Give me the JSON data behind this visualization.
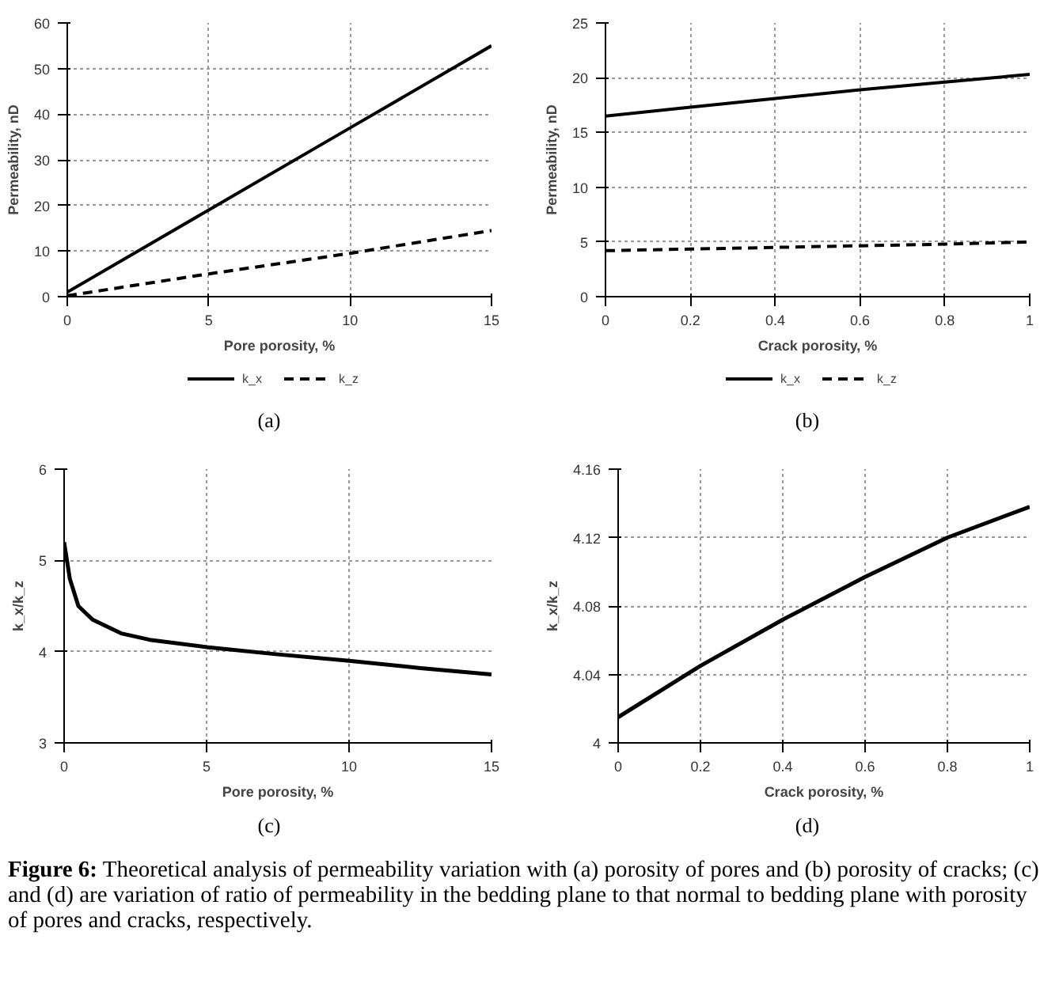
{
  "chart_data": [
    {
      "type": "line",
      "xlabel": "Pore porosity, %",
      "ylabel": "Permeability, nD",
      "x": [
        0,
        5,
        10,
        15
      ],
      "xlim": [
        0,
        15
      ],
      "xticks": [
        0,
        5,
        10,
        15
      ],
      "ylim": [
        0,
        60
      ],
      "yticks": [
        0,
        10,
        20,
        30,
        40,
        50,
        60
      ],
      "grid": true,
      "legend": "bottom",
      "annotations": [
        "(a)"
      ],
      "series": [
        {
          "name": "k_x",
          "color": "#000000",
          "line_style": "solid",
          "values": [
            1,
            19,
            37,
            55
          ]
        },
        {
          "name": "k_z",
          "color": "#000000",
          "line_style": "dashed",
          "values": [
            0.2,
            5,
            9.5,
            14.5
          ]
        }
      ]
    },
    {
      "type": "line",
      "xlabel": "Crack porosity, %",
      "ylabel": "Permeability, nD",
      "x": [
        0,
        0.2,
        0.4,
        0.6,
        0.8,
        1
      ],
      "xlim": [
        0,
        1
      ],
      "xticks": [
        0,
        0.2,
        0.4,
        0.6,
        0.8,
        1
      ],
      "ylim": [
        0,
        25
      ],
      "yticks": [
        0,
        5,
        10,
        15,
        20,
        25
      ],
      "grid": true,
      "legend": "bottom",
      "annotations": [
        "(b)"
      ],
      "series": [
        {
          "name": "k_x",
          "color": "#000000",
          "line_style": "solid",
          "values": [
            16.5,
            17.3,
            18.1,
            18.9,
            19.6,
            20.3
          ]
        },
        {
          "name": "k_z",
          "color": "#000000",
          "line_style": "dashed",
          "values": [
            4.2,
            4.35,
            4.5,
            4.65,
            4.8,
            5.0
          ]
        }
      ]
    },
    {
      "type": "line",
      "xlabel": "Pore porosity, %",
      "ylabel": "k_x/k_z",
      "x": [
        0,
        0.2,
        0.5,
        1,
        2,
        3,
        5,
        7.5,
        10,
        12.5,
        15
      ],
      "xlim": [
        0,
        15
      ],
      "xticks": [
        0,
        5,
        10,
        15
      ],
      "ylim": [
        3,
        6
      ],
      "yticks": [
        3,
        4,
        5,
        6
      ],
      "grid": true,
      "annotations": [
        "(c)"
      ],
      "series": [
        {
          "color": "#000000",
          "values": [
            5.2,
            4.8,
            4.5,
            4.35,
            4.2,
            4.13,
            4.05,
            3.97,
            3.9,
            3.82,
            3.75
          ]
        }
      ]
    },
    {
      "type": "line",
      "xlabel": "Crack porosity, %",
      "ylabel": "k_x/k_z",
      "x": [
        0,
        0.2,
        0.4,
        0.6,
        0.8,
        1
      ],
      "xlim": [
        0,
        1
      ],
      "xticks": [
        0,
        0.2,
        0.4,
        0.6,
        0.8,
        1
      ],
      "ylim": [
        4,
        4.16
      ],
      "yticks": [
        4,
        4.04,
        4.08,
        4.12,
        4.16
      ],
      "grid": true,
      "annotations": [
        "(d)",
        "Figure 6: Theoretical analysis of permeability variation with (a) porosity of pores and (b) porosity of cracks; (c) and (d) are variation of ratio of permeability in the bedding plane to that normal to bedding plane with porosity of pores and cracks, respectively."
      ],
      "series": [
        {
          "color": "#000000",
          "values": [
            4.015,
            4.045,
            4.072,
            4.097,
            4.12,
            4.138
          ]
        }
      ]
    }
  ]
}
